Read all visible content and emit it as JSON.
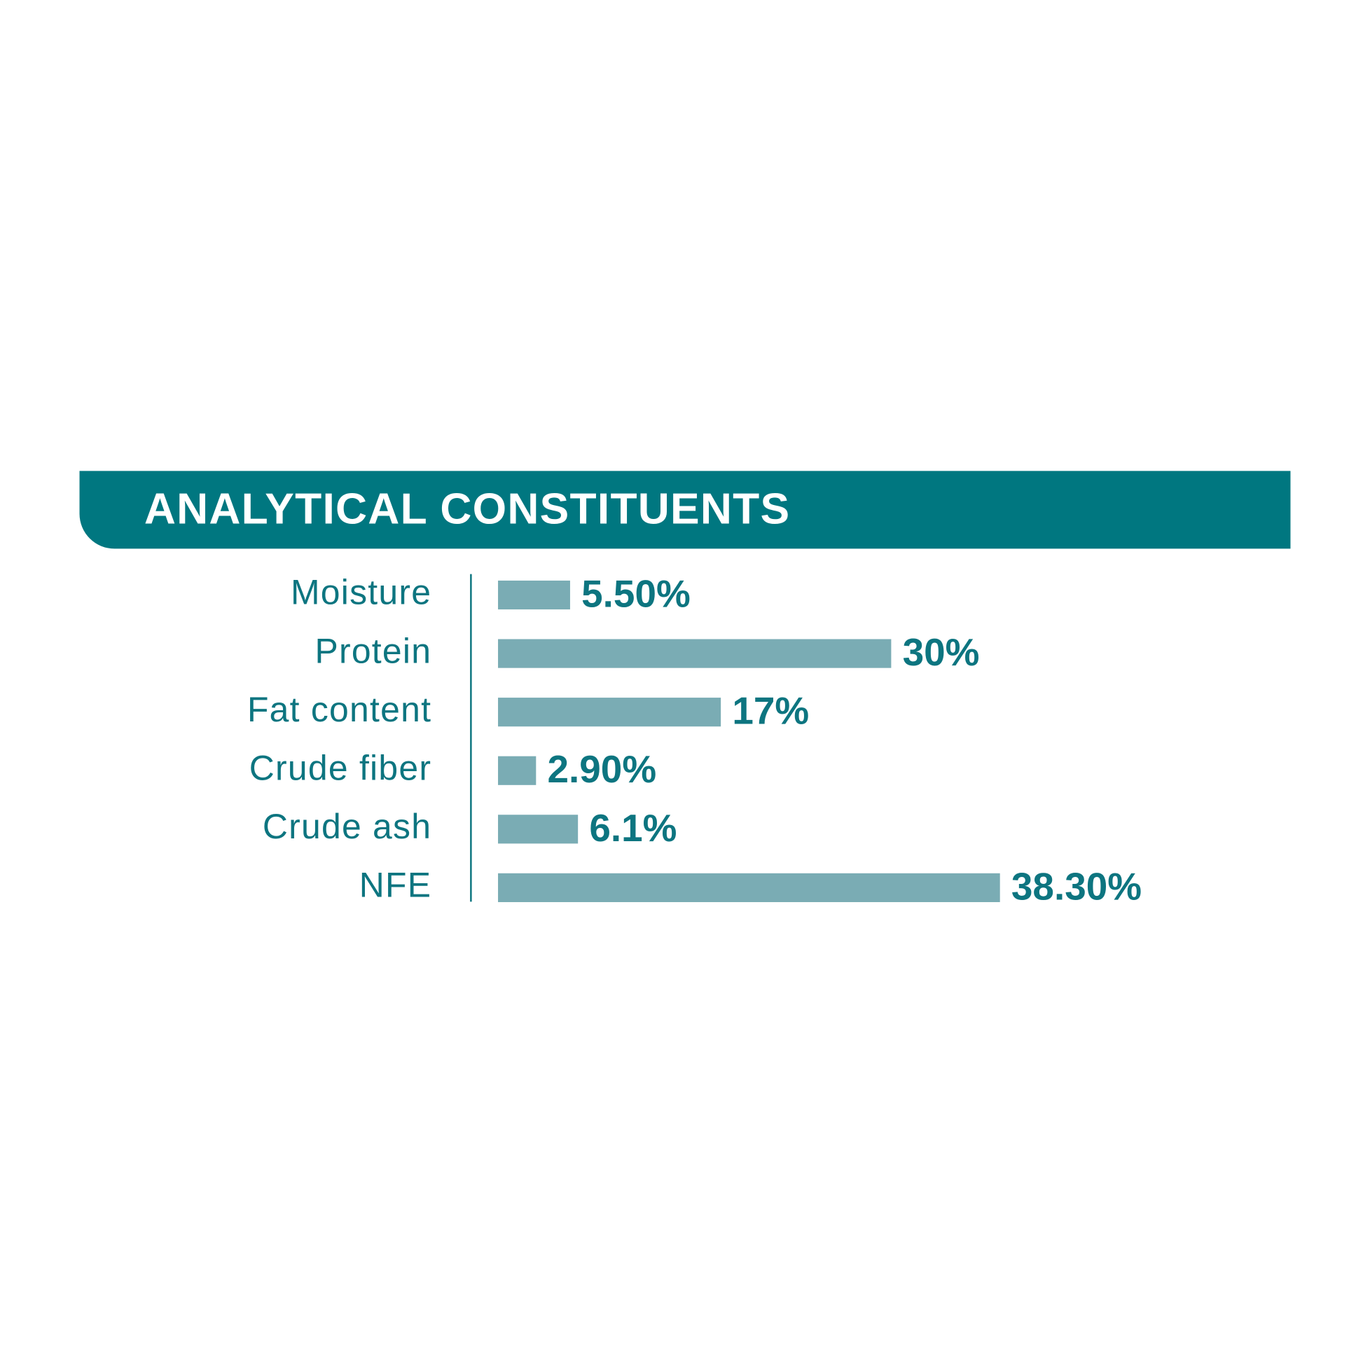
{
  "chart_data": {
    "type": "bar",
    "title": "ANALYTICAL CONSTITUENTS",
    "categories": [
      "Moisture",
      "Protein",
      "Fat content",
      "Crude fiber",
      "Crude ash",
      "NFE"
    ],
    "values": [
      5.5,
      30,
      17,
      2.9,
      6.1,
      38.3
    ],
    "value_labels": [
      "5.50%",
      "30%",
      "17%",
      "2.90%",
      "6.1%",
      "38.30%"
    ],
    "color": "#7aacb4"
  }
}
